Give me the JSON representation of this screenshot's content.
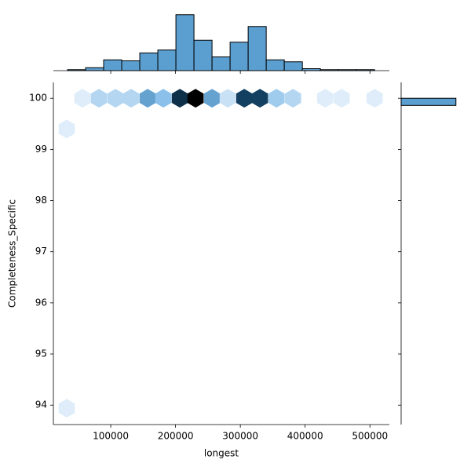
{
  "chart_data": {
    "type": "hexbin",
    "x_label": "longest",
    "y_label": "Completeness_Specific",
    "xlim": [
      11500,
      530000
    ],
    "xticks": [
      100000,
      200000,
      300000,
      400000,
      500000
    ],
    "ylim": [
      93.62,
      100.31
    ],
    "yticks": [
      94,
      95,
      96,
      97,
      98,
      99,
      100
    ],
    "hex_colors": [
      "#f3f8fd",
      "#7cb8e6",
      "#1b5a8a",
      "#000000"
    ],
    "hexbins": {
      "x": [
        56400,
        81800,
        107300,
        131500,
        157000,
        181200,
        206700,
        230900,
        256400,
        280600,
        306100,
        330300,
        355800,
        381300,
        430900,
        456400,
        507300,
        32100,
        32100
      ],
      "y": [
        100,
        100,
        100,
        100,
        100,
        100,
        100,
        100,
        100,
        100,
        100,
        100,
        100,
        100,
        100,
        100,
        100,
        99.4,
        93.94
      ],
      "counts": [
        1,
        3,
        3,
        3,
        7,
        5,
        14,
        17,
        7,
        2,
        13,
        13,
        4,
        3,
        1,
        1,
        1,
        1,
        1
      ]
    },
    "marginal_x": {
      "color": "#5b9fd0",
      "bins": [
        33300,
        61180,
        89060,
        116940,
        144820,
        172700,
        200580,
        228460,
        256340,
        284220,
        312100,
        339980,
        367860,
        395740,
        423620,
        451500,
        479380,
        507260
      ],
      "counts": [
        1,
        3,
        11,
        10,
        18,
        21,
        57,
        31,
        14,
        29,
        45,
        11,
        9,
        2,
        1,
        1,
        1
      ],
      "ylim": [
        0,
        60
      ]
    },
    "marginal_y": {
      "color": "#5b9fd0",
      "bins": [
        99.86,
        100.0
      ],
      "counts": [
        265
      ],
      "xlim": [
        0,
        300
      ]
    }
  }
}
